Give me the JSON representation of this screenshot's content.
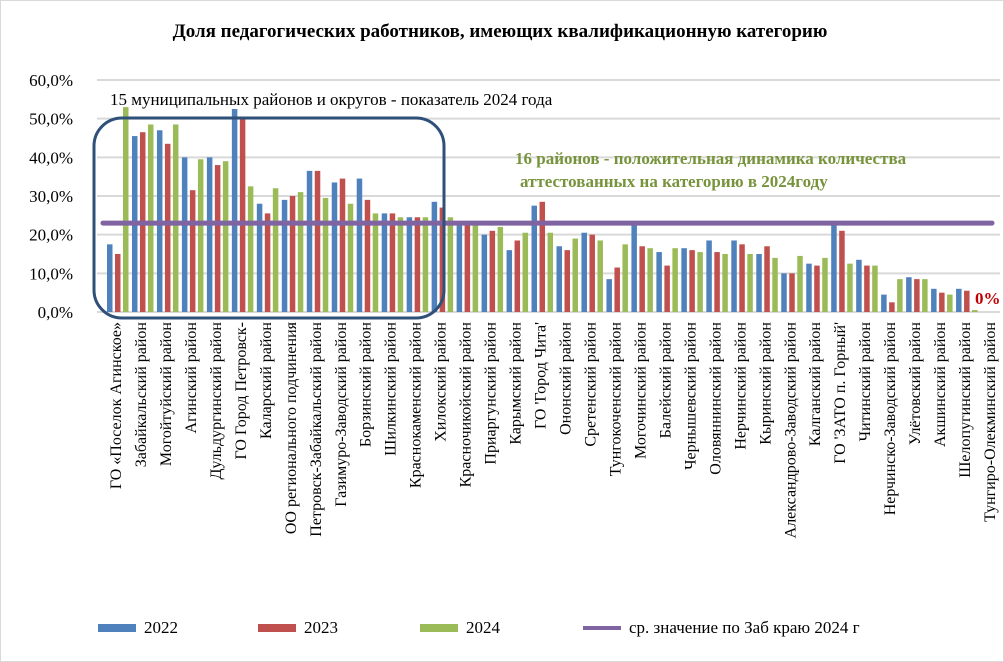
{
  "chart_data": {
    "type": "bar",
    "title": "Доля педагогических работников, имеющих квалификационную категорию",
    "ylim": [
      0,
      60
    ],
    "yticks": [
      "0,0%",
      "10,0%",
      "20,0%",
      "30,0%",
      "40,0%",
      "50,0%",
      "60,0%"
    ],
    "categories": [
      "ГО «Поселок Агинское»",
      "Забайкальский район",
      "Могойтуйский район",
      "Агинский район",
      "Дульдургинский район",
      "ГО Город Петровск-",
      "Каларский район",
      "ОО регионального подчинения",
      "Петровск-Забайкальский район",
      "Газимуро-Заводский район",
      "Борзинский район",
      "Шилкинский район",
      "Краснокаменский район",
      "Хилокский район",
      "Красночикойский район",
      "Приаргунский район",
      "Карымский район",
      "ГО 'Город Чита'",
      "Ононский район",
      "Сретенский район",
      "Тунгокоченский район",
      "Могочинский район",
      "Балейский район",
      "Чернышевский район",
      "Оловяннинский район",
      "Нерчинский район",
      "Кыринский район",
      "Александрово-Заводский район",
      "Калганский район",
      "ГО 'ЗАТО п. Горный'",
      "Читинский район",
      "Нерчинско-Заводский район",
      "Улётовский район",
      "Акшинский район",
      "Шелопугинский район",
      "Тунгиро-Олекминский район"
    ],
    "series": [
      {
        "name": "2022",
        "color": "#4f81bd",
        "values": [
          17.5,
          45.5,
          47,
          40,
          40,
          52.5,
          28,
          29,
          36.5,
          33.5,
          34.5,
          25.5,
          24.5,
          28.5,
          23,
          20,
          16,
          27.5,
          17,
          20.5,
          8.5,
          23,
          15.5,
          16.5,
          18.5,
          18.5,
          15,
          10,
          12.5,
          23.5,
          13.5,
          4.5,
          9,
          6,
          6,
          0
        ]
      },
      {
        "name": "2023",
        "color": "#c0504d",
        "values": [
          15,
          46.5,
          43.5,
          31.5,
          38,
          50,
          25.5,
          30,
          36.5,
          34.5,
          29,
          25.5,
          24.5,
          27,
          23.5,
          21,
          18.5,
          28.5,
          16,
          20,
          11.5,
          17,
          12,
          16,
          15.5,
          17.5,
          17,
          10,
          12,
          21,
          12,
          2.5,
          8.5,
          5,
          5.5,
          0
        ]
      },
      {
        "name": "2024",
        "color": "#9bbb59",
        "values": [
          53,
          48.5,
          48.5,
          39.5,
          39,
          32.5,
          32,
          31,
          29.5,
          28,
          25.5,
          24.5,
          24.5,
          24.5,
          22.5,
          22,
          20.5,
          20.5,
          19,
          18.5,
          17.5,
          16.5,
          16.5,
          15.5,
          15,
          15,
          14,
          14.5,
          14,
          12.5,
          12,
          8.5,
          8.5,
          4.5,
          0.5,
          0
        ]
      }
    ],
    "average": {
      "name": "ср. значение по Заб краю 2024 г",
      "value": 23,
      "color": "#8064a2"
    },
    "annotations": {
      "box_label": "15 муниципальных  районов и округов - показатель 2024 года",
      "dynamics_line1": "16 районов - положительная динамика количества",
      "dynamics_line2": "аттестованных  на категорию в 2024году",
      "zero_label": "0%"
    },
    "legend_position": "bottom"
  }
}
